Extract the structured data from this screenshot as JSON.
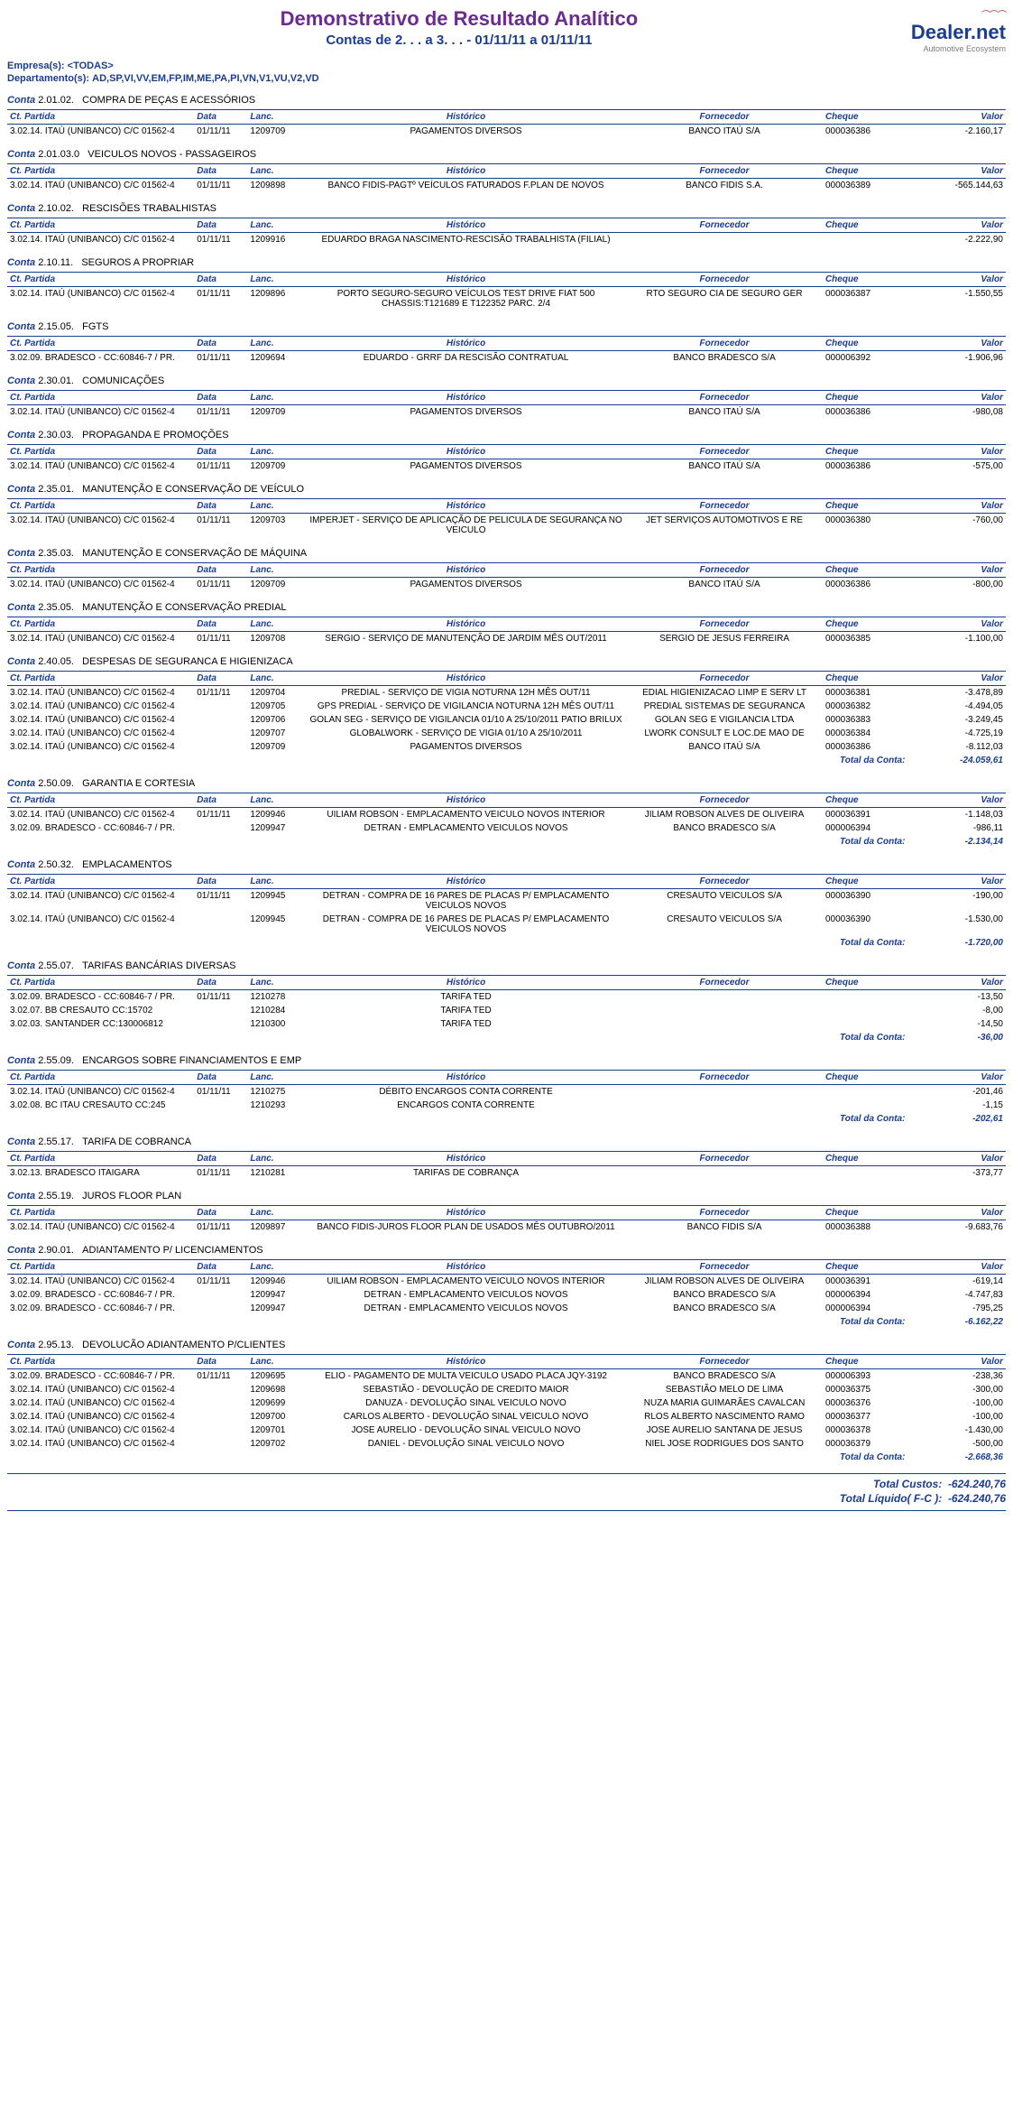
{
  "header": {
    "title": "Demonstrativo de Resultado Analítico",
    "subtitle": "Contas de 2. . .    a 3. . .    - 01/11/11 a 01/11/11",
    "logo_main": "Dealer.net",
    "logo_sub": "Automotive Ecosystem",
    "empresas_label": "Empresa(s):",
    "empresas_value": "<TODAS>",
    "dept_label": "Departamento(s):",
    "dept_value": "AD,SP,VI,VV,EM,FP,IM,ME,PA,PI,VN,V1,VU,V2,VD"
  },
  "cols": {
    "partida": "Ct. Partida",
    "data": "Data",
    "lanc": "Lanc.",
    "hist": "Histórico",
    "forn": "Fornecedor",
    "cheque": "Cheque",
    "valor": "Valor"
  },
  "conta_prefix": "Conta",
  "total_conta_label": "Total da Conta:",
  "sections": [
    {
      "code": "2.01.02.",
      "name": "COMPRA DE PEÇAS E ACESSÓRIOS",
      "rows": [
        {
          "partida": "3.02.14. ITAÚ (UNIBANCO) C/C 01562-4",
          "data": "01/11/11",
          "lanc": "1209709",
          "hist": "PAGAMENTOS DIVERSOS",
          "forn": "BANCO ITAÚ S/A",
          "cheque": "000036386",
          "valor": "-2.160,17"
        }
      ]
    },
    {
      "code": "2.01.03.0",
      "name": "VEICULOS NOVOS - PASSAGEIROS",
      "rows": [
        {
          "partida": "3.02.14. ITAÚ (UNIBANCO) C/C 01562-4",
          "data": "01/11/11",
          "lanc": "1209898",
          "hist": "BANCO FIDIS-PAGTº VEÍCULOS FATURADOS F.PLAN DE NOVOS",
          "forn": "BANCO FIDIS S.A.",
          "cheque": "000036389",
          "valor": "-565.144,63"
        }
      ]
    },
    {
      "code": "2.10.02.",
      "name": "RESCISÕES TRABALHISTAS",
      "rows": [
        {
          "partida": "3.02.14. ITAÚ (UNIBANCO) C/C 01562-4",
          "data": "01/11/11",
          "lanc": "1209916",
          "hist": "EDUARDO BRAGA NASCIMENTO-RESCISÃO TRABALHISTA (FILIAL)",
          "forn": "",
          "cheque": "",
          "valor": "-2.222,90"
        }
      ]
    },
    {
      "code": "2.10.11.",
      "name": "SEGUROS A PROPRIAR",
      "rows": [
        {
          "partida": "3.02.14. ITAÚ (UNIBANCO) C/C 01562-4",
          "data": "01/11/11",
          "lanc": "1209896",
          "hist": "PORTO SEGURO-SEGURO VEÍCULOS TEST DRIVE FIAT 500 CHASSIS:T121689 E T122352 PARC. 2/4",
          "forn": "RTO SEGURO CIA DE SEGURO GER",
          "cheque": "000036387",
          "valor": "-1.550,55"
        }
      ]
    },
    {
      "code": "2.15.05.",
      "name": "FGTS",
      "rows": [
        {
          "partida": "3.02.09. BRADESCO - CC:60846-7 / PR.",
          "data": "01/11/11",
          "lanc": "1209694",
          "hist": "EDUARDO - GRRF DA RESCISÃO CONTRATUAL",
          "forn": "BANCO BRADESCO S/A",
          "cheque": "000006392",
          "valor": "-1.906,96"
        }
      ]
    },
    {
      "code": "2.30.01.",
      "name": "COMUNICAÇÕES",
      "rows": [
        {
          "partida": "3.02.14. ITAÚ (UNIBANCO) C/C 01562-4",
          "data": "01/11/11",
          "lanc": "1209709",
          "hist": "PAGAMENTOS DIVERSOS",
          "forn": "BANCO ITAÚ S/A",
          "cheque": "000036386",
          "valor": "-980,08"
        }
      ]
    },
    {
      "code": "2.30.03.",
      "name": "PROPAGANDA E PROMOÇÕES",
      "rows": [
        {
          "partida": "3.02.14. ITAÚ (UNIBANCO) C/C 01562-4",
          "data": "01/11/11",
          "lanc": "1209709",
          "hist": "PAGAMENTOS DIVERSOS",
          "forn": "BANCO ITAÚ S/A",
          "cheque": "000036386",
          "valor": "-575,00"
        }
      ]
    },
    {
      "code": "2.35.01.",
      "name": "MANUTENÇÃO E CONSERVAÇÃO DE VEÍCULO",
      "rows": [
        {
          "partida": "3.02.14. ITAÚ (UNIBANCO) C/C 01562-4",
          "data": "01/11/11",
          "lanc": "1209703",
          "hist": "IMPERJET  - SERVIÇO DE APLICAÇÃO DE PELICULA DE SEGURANÇA NO VEICULO",
          "forn": "JET SERVIÇOS AUTOMOTIVOS E RE",
          "cheque": "000036380",
          "valor": "-760,00"
        }
      ]
    },
    {
      "code": "2.35.03.",
      "name": "MANUTENÇÃO E CONSERVAÇÃO DE MÁQUINA",
      "rows": [
        {
          "partida": "3.02.14. ITAÚ (UNIBANCO) C/C 01562-4",
          "data": "01/11/11",
          "lanc": "1209709",
          "hist": "PAGAMENTOS DIVERSOS",
          "forn": "BANCO ITAÚ S/A",
          "cheque": "000036386",
          "valor": "-800,00"
        }
      ]
    },
    {
      "code": "2.35.05.",
      "name": "MANUTENÇÃO E CONSERVAÇÃO PREDIAL",
      "rows": [
        {
          "partida": "3.02.14. ITAÚ (UNIBANCO) C/C 01562-4",
          "data": "01/11/11",
          "lanc": "1209708",
          "hist": "SERGIO  - SERVIÇO DE MANUTENÇÃO DE JARDIM MÊS OUT/2011",
          "forn": "SERGIO DE JESUS FERREIRA",
          "cheque": "000036385",
          "valor": "-1.100,00"
        }
      ]
    },
    {
      "code": "2.40.05.",
      "name": "DESPESAS DE SEGURANCA E HIGIENIZACA",
      "rows": [
        {
          "partida": "3.02.14. ITAÚ (UNIBANCO) C/C 01562-4",
          "data": "01/11/11",
          "lanc": "1209704",
          "hist": "PREDIAL - SERVIÇO DE VIGIA NOTURNA 12H MÊS OUT/11",
          "forn": "EDIAL HIGIENIZACAO LIMP E SERV LT",
          "cheque": "000036381",
          "valor": "-3.478,89"
        },
        {
          "partida": "3.02.14. ITAÚ (UNIBANCO) C/C 01562-4",
          "data": "",
          "lanc": "1209705",
          "hist": "GPS PREDIAL - SERVIÇO DE VIGILANCIA NOTURNA 12H MÊS OUT/11",
          "forn": "PREDIAL SISTEMAS DE SEGURANCA",
          "cheque": "000036382",
          "valor": "-4.494,05"
        },
        {
          "partida": "3.02.14. ITAÚ (UNIBANCO) C/C 01562-4",
          "data": "",
          "lanc": "1209706",
          "hist": "GOLAN SEG - SERVIÇO DE VIGILANCIA 01/10 A 25/10/2011 PATIO BRILUX",
          "forn": "GOLAN SEG E VIGILANCIA LTDA",
          "cheque": "000036383",
          "valor": "-3.249,45"
        },
        {
          "partida": "3.02.14. ITAÚ (UNIBANCO) C/C 01562-4",
          "data": "",
          "lanc": "1209707",
          "hist": "GLOBALWORK - SERVIÇO DE VIGIA 01/10 A 25/10/2011",
          "forn": "LWORK CONSULT E LOC.DE MAO DE",
          "cheque": "000036384",
          "valor": "-4.725,19"
        },
        {
          "partida": "3.02.14. ITAÚ (UNIBANCO) C/C 01562-4",
          "data": "",
          "lanc": "1209709",
          "hist": "PAGAMENTOS DIVERSOS",
          "forn": "BANCO ITAÚ S/A",
          "cheque": "000036386",
          "valor": "-8.112,03"
        }
      ],
      "total": "-24.059,61"
    },
    {
      "code": "2.50.09.",
      "name": "GARANTIA E CORTESIA",
      "rows": [
        {
          "partida": "3.02.14. ITAÚ (UNIBANCO) C/C 01562-4",
          "data": "01/11/11",
          "lanc": "1209946",
          "hist": "UILIAM ROBSON  - EMPLACAMENTO VEICULO NOVOS INTERIOR",
          "forn": "JILIAM ROBSON ALVES DE OLIVEIRA",
          "cheque": "000036391",
          "valor": "-1.148,03"
        },
        {
          "partida": "3.02.09. BRADESCO - CC:60846-7 / PR.",
          "data": "",
          "lanc": "1209947",
          "hist": "DETRAN - EMPLACAMENTO VEICULOS NOVOS",
          "forn": "BANCO BRADESCO S/A",
          "cheque": "000006394",
          "valor": "-986,11"
        }
      ],
      "total": "-2.134,14"
    },
    {
      "code": "2.50.32.",
      "name": "EMPLACAMENTOS",
      "rows": [
        {
          "partida": "3.02.14. ITAÚ (UNIBANCO) C/C 01562-4",
          "data": "01/11/11",
          "lanc": "1209945",
          "hist": "DETRAN - COMPRA DE 16 PARES DE PLACAS P/ EMPLACAMENTO VEICULOS NOVOS",
          "forn": "CRESAUTO VEICULOS S/A",
          "cheque": "000036390",
          "valor": "-190,00"
        },
        {
          "partida": "3.02.14. ITAÚ (UNIBANCO) C/C 01562-4",
          "data": "",
          "lanc": "1209945",
          "hist": "DETRAN - COMPRA DE 16 PARES DE PLACAS P/ EMPLACAMENTO VEICULOS NOVOS",
          "forn": "CRESAUTO VEICULOS S/A",
          "cheque": "000036390",
          "valor": "-1.530,00"
        }
      ],
      "total": "-1.720,00"
    },
    {
      "code": "2.55.07.",
      "name": "TARIFAS BANCÁRIAS DIVERSAS",
      "rows": [
        {
          "partida": "3.02.09. BRADESCO - CC:60846-7 / PR.",
          "data": "01/11/11",
          "lanc": "1210278",
          "hist": "TARIFA TED",
          "forn": "",
          "cheque": "",
          "valor": "-13,50"
        },
        {
          "partida": "3.02.07. BB         CRESAUTO    CC:15702",
          "data": "",
          "lanc": "1210284",
          "hist": "TARIFA TED",
          "forn": "",
          "cheque": "",
          "valor": "-8,00"
        },
        {
          "partida": "3.02.03. SANTANDER  CC:130006812",
          "data": "",
          "lanc": "1210300",
          "hist": "TARIFA TED",
          "forn": "",
          "cheque": "",
          "valor": "-14,50"
        }
      ],
      "total": "-36,00"
    },
    {
      "code": "2.55.09.",
      "name": "ENCARGOS SOBRE FINANCIAMENTOS E EMP",
      "rows": [
        {
          "partida": "3.02.14. ITAÚ (UNIBANCO) C/C 01562-4",
          "data": "01/11/11",
          "lanc": "1210275",
          "hist": "DÉBITO ENCARGOS CONTA CORRENTE",
          "forn": "",
          "cheque": "",
          "valor": "-201,46"
        },
        {
          "partida": "3.02.08. BC ITAU    CRESAUTO    CC:245",
          "data": "",
          "lanc": "1210293",
          "hist": "ENCARGOS CONTA CORRENTE",
          "forn": "",
          "cheque": "",
          "valor": "-1,15"
        }
      ],
      "total": "-202,61"
    },
    {
      "code": "2.55.17.",
      "name": "TARIFA DE COBRANCA",
      "rows": [
        {
          "partida": "3.02.13. BRADESCO ITAIGARA",
          "data": "01/11/11",
          "lanc": "1210281",
          "hist": "TARIFAS DE COBRANÇA",
          "forn": "",
          "cheque": "",
          "valor": "-373,77"
        }
      ]
    },
    {
      "code": "2.55.19.",
      "name": "JUROS FLOOR PLAN",
      "rows": [
        {
          "partida": "3.02.14. ITAÚ (UNIBANCO) C/C 01562-4",
          "data": "01/11/11",
          "lanc": "1209897",
          "hist": "BANCO FIDIS-JUROS FLOOR PLAN DE USADOS MÊS OUTUBRO/2011",
          "forn": "BANCO FIDIS S/A",
          "cheque": "000036388",
          "valor": "-9.683,76"
        }
      ]
    },
    {
      "code": "2.90.01.",
      "name": "ADIANTAMENTO P/ LICENCIAMENTOS",
      "rows": [
        {
          "partida": "3.02.14. ITAÚ (UNIBANCO) C/C 01562-4",
          "data": "01/11/11",
          "lanc": "1209946",
          "hist": "UILIAM ROBSON  - EMPLACAMENTO VEICULO NOVOS INTERIOR",
          "forn": "JILIAM ROBSON ALVES DE OLIVEIRA",
          "cheque": "000036391",
          "valor": "-619,14"
        },
        {
          "partida": "3.02.09. BRADESCO - CC:60846-7 / PR.",
          "data": "",
          "lanc": "1209947",
          "hist": "DETRAN - EMPLACAMENTO VEICULOS NOVOS",
          "forn": "BANCO BRADESCO S/A",
          "cheque": "000006394",
          "valor": "-4.747,83"
        },
        {
          "partida": "3.02.09. BRADESCO - CC:60846-7 / PR.",
          "data": "",
          "lanc": "1209947",
          "hist": "DETRAN - EMPLACAMENTO VEICULOS NOVOS",
          "forn": "BANCO BRADESCO S/A",
          "cheque": "000006394",
          "valor": "-795,25"
        }
      ],
      "total": "-6.162,22"
    },
    {
      "code": "2.95.13.",
      "name": "DEVOLUCÃO ADIANTAMENTO P/CLIENTES",
      "rows": [
        {
          "partida": "3.02.09. BRADESCO - CC:60846-7 / PR.",
          "data": "01/11/11",
          "lanc": "1209695",
          "hist": "ELIO - PAGAMENTO DE MULTA VEICULO USADO PLACA JQY-3192",
          "forn": "BANCO BRADESCO  S/A",
          "cheque": "000006393",
          "valor": "-238,36"
        },
        {
          "partida": "3.02.14. ITAÚ (UNIBANCO) C/C 01562-4",
          "data": "",
          "lanc": "1209698",
          "hist": "SEBASTIÃO - DEVOLUÇÃO DE CREDITO MAIOR",
          "forn": "SEBASTIÃO MELO DE LIMA",
          "cheque": "000036375",
          "valor": "-300,00"
        },
        {
          "partida": "3.02.14. ITAÚ (UNIBANCO) C/C 01562-4",
          "data": "",
          "lanc": "1209699",
          "hist": "DANUZA - DEVOLUÇÃO SINAL VEICULO NOVO",
          "forn": "NUZA MARIA GUIMARÃES CAVALCAN",
          "cheque": "000036376",
          "valor": "-100,00"
        },
        {
          "partida": "3.02.14. ITAÚ (UNIBANCO) C/C 01562-4",
          "data": "",
          "lanc": "1209700",
          "hist": "CARLOS ALBERTO - DEVOLUÇÃO SINAL VEICULO NOVO",
          "forn": "RLOS ALBERTO NASCIMENTO RAMO",
          "cheque": "000036377",
          "valor": "-100,00"
        },
        {
          "partida": "3.02.14. ITAÚ (UNIBANCO) C/C 01562-4",
          "data": "",
          "lanc": "1209701",
          "hist": "JOSE AURELIO - DEVOLUÇÃO SINAL VEICULO NOVO",
          "forn": "JOSE AURELIO SANTANA DE JESUS",
          "cheque": "000036378",
          "valor": "-1.430,00"
        },
        {
          "partida": "3.02.14. ITAÚ (UNIBANCO) C/C 01562-4",
          "data": "",
          "lanc": "1209702",
          "hist": "DANIEL - DEVOLUÇÃO SINAL VEICULO NOVO",
          "forn": "NIEL JOSE RODRIGUES DOS SANTO",
          "cheque": "000036379",
          "valor": "-500,00"
        }
      ],
      "total": "-2.668,36"
    }
  ],
  "grand": {
    "custos_label": "Total Custos:",
    "custos_value": "-624.240,76",
    "liquido_label": "Total Líquido( F-C ):",
    "liquido_value": "-624.240,76"
  }
}
